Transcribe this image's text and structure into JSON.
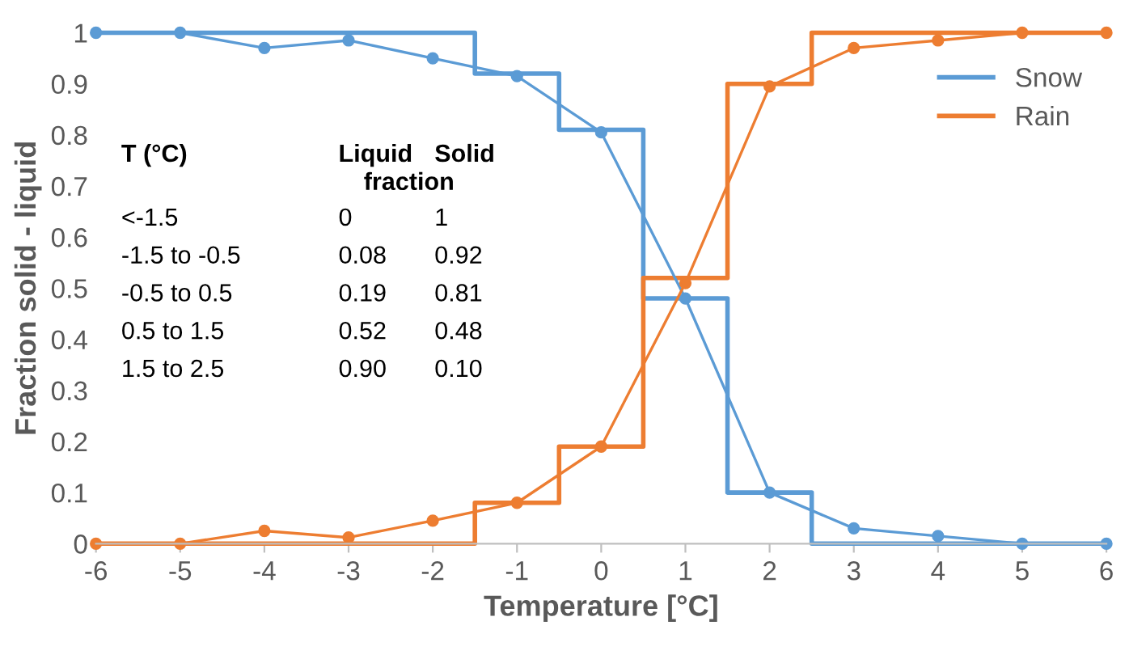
{
  "chart_data": {
    "type": "line",
    "xlabel": "Temperature [°C]",
    "ylabel": "Fraction solid - liquid",
    "xlim": [
      -6,
      6
    ],
    "ylim": [
      0,
      1
    ],
    "xticks": [
      -6,
      -5,
      -4,
      -3,
      -2,
      -1,
      0,
      1,
      2,
      3,
      4,
      5,
      6
    ],
    "yticks": [
      0,
      0.1,
      0.2,
      0.3,
      0.4,
      0.5,
      0.6,
      0.7,
      0.8,
      0.9,
      1
    ],
    "grid": false,
    "legend": "top right",
    "series": [
      {
        "type": "step",
        "name": "Snow",
        "color": "#5b9bd5",
        "x": [
          -6,
          -1.5,
          -0.5,
          0.5,
          1.5,
          2.5,
          6
        ],
        "values": [
          1,
          0.92,
          0.81,
          0.48,
          0.1,
          0,
          0
        ]
      },
      {
        "type": "step",
        "name": "Rain",
        "color": "#ed7d31",
        "x": [
          -6,
          -1.5,
          -0.5,
          0.5,
          1.5,
          2.5,
          6
        ],
        "values": [
          0,
          0.08,
          0.19,
          0.52,
          0.9,
          1,
          1
        ]
      },
      {
        "marker": "circle",
        "color": "#5b9bd5",
        "x": [
          -6,
          -5,
          -4,
          -3,
          -2,
          -1,
          0,
          1,
          2,
          3,
          4,
          5,
          6
        ],
        "values": [
          1,
          1,
          0.97,
          0.985,
          0.95,
          0.915,
          0.805,
          0.48,
          0.1,
          0.03,
          0.015,
          0,
          0
        ]
      },
      {
        "marker": "circle",
        "color": "#ed7d31",
        "x": [
          -6,
          -5,
          -4,
          -3,
          -2,
          -1,
          0,
          1,
          2,
          3,
          4,
          5,
          6
        ],
        "values": [
          0,
          0,
          0.025,
          0.012,
          0.045,
          0.08,
          0.19,
          0.51,
          0.895,
          0.97,
          0.985,
          1,
          1
        ]
      }
    ],
    "annotations": [
      "T (°C)",
      "Liquid",
      "Solid",
      "fraction",
      "<-1.5",
      "0",
      "1",
      "-1.5 to -0.5",
      "0.08",
      "0.92",
      "-0.5 to 0.5",
      "0.19",
      "0.81",
      "0.5 to 1.5",
      "0.52",
      "0.48",
      "1.5 to 2.5",
      "0.90",
      "0.10"
    ]
  }
}
